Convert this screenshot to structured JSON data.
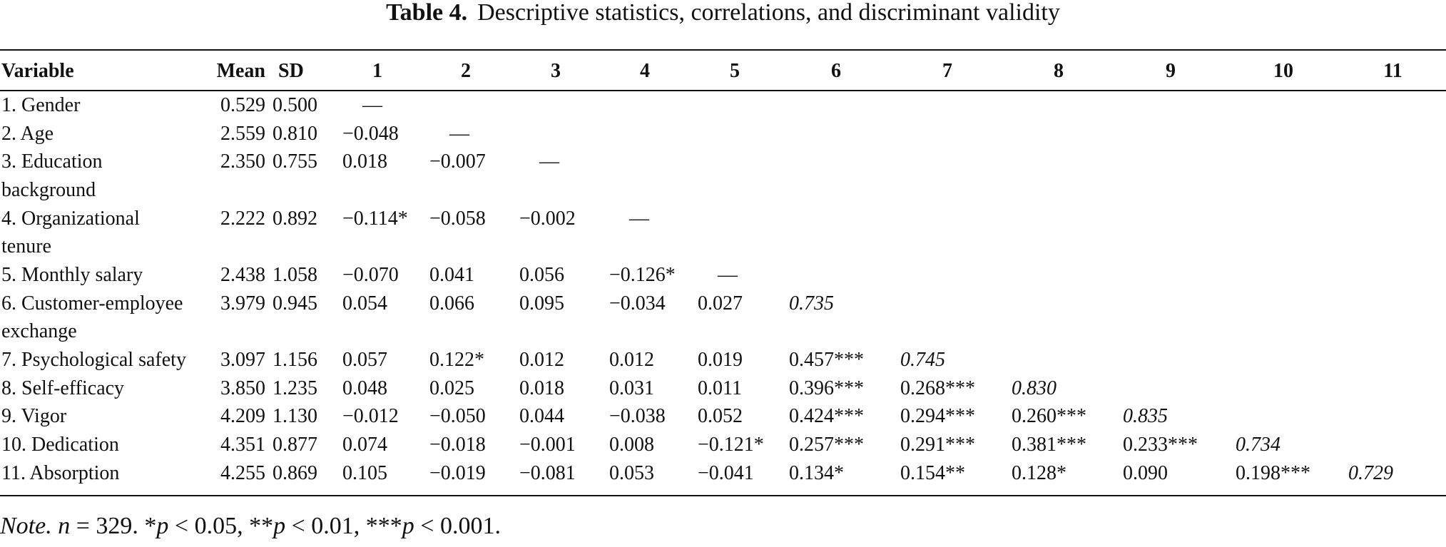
{
  "caption": {
    "label": "Table 4.",
    "title": "Descriptive statistics, correlations, and discriminant validity"
  },
  "headers": [
    "Variable",
    "Mean",
    "SD",
    "1",
    "2",
    "3",
    "4",
    "5",
    "6",
    "7",
    "8",
    "9",
    "10",
    "11"
  ],
  "rows": [
    {
      "variable": "1. Gender",
      "cont": "",
      "mean": "0.529",
      "sd": "0.500",
      "cells": [
        "—",
        "",
        "",
        "",
        "",
        "",
        "",
        "",
        "",
        "",
        ""
      ]
    },
    {
      "variable": "2. Age",
      "cont": "",
      "mean": "2.559",
      "sd": "0.810",
      "cells": [
        "−0.048",
        "—",
        "",
        "",
        "",
        "",
        "",
        "",
        "",
        "",
        ""
      ]
    },
    {
      "variable": "3. Education",
      "cont": "background",
      "mean": "2.350",
      "sd": "0.755",
      "cells": [
        "0.018",
        "−0.007",
        "—",
        "",
        "",
        "",
        "",
        "",
        "",
        "",
        ""
      ]
    },
    {
      "variable": "4. Organizational",
      "cont": "tenure",
      "mean": "2.222",
      "sd": "0.892",
      "cells": [
        "−0.114*",
        "−0.058",
        "−0.002",
        "—",
        "",
        "",
        "",
        "",
        "",
        "",
        ""
      ]
    },
    {
      "variable": "5. Monthly salary",
      "cont": "",
      "mean": "2.438",
      "sd": "1.058",
      "cells": [
        "−0.070",
        "0.041",
        "0.056",
        "−0.126*",
        "—",
        "",
        "",
        "",
        "",
        "",
        ""
      ]
    },
    {
      "variable": "6. Customer-employee",
      "cont": "exchange",
      "mean": "3.979",
      "sd": "0.945",
      "cells": [
        "0.054",
        "0.066",
        "0.095",
        "−0.034",
        "0.027",
        "0.735",
        "",
        "",
        "",
        "",
        ""
      ]
    },
    {
      "variable": "7. Psychological safety",
      "cont": "",
      "mean": "3.097",
      "sd": "1.156",
      "cells": [
        "0.057",
        "0.122*",
        "0.012",
        "0.012",
        "0.019",
        "0.457***",
        "0.745",
        "",
        "",
        "",
        ""
      ]
    },
    {
      "variable": "8. Self-efficacy",
      "cont": "",
      "mean": "3.850",
      "sd": "1.235",
      "cells": [
        "0.048",
        "0.025",
        "0.018",
        "0.031",
        "0.011",
        "0.396***",
        "0.268***",
        "0.830",
        "",
        "",
        ""
      ]
    },
    {
      "variable": "9. Vigor",
      "cont": "",
      "mean": "4.209",
      "sd": "1.130",
      "cells": [
        "−0.012",
        "−0.050",
        "0.044",
        "−0.038",
        "0.052",
        "0.424***",
        "0.294***",
        "0.260***",
        "0.835",
        "",
        ""
      ]
    },
    {
      "variable": "10. Dedication",
      "cont": "",
      "mean": "4.351",
      "sd": "0.877",
      "cells": [
        "0.074",
        "−0.018",
        "−0.001",
        "0.008",
        "−0.121*",
        "0.257***",
        "0.291***",
        "0.381***",
        "0.233***",
        "0.734",
        ""
      ]
    },
    {
      "variable": "11. Absorption",
      "cont": "",
      "mean": "4.255",
      "sd": "0.869",
      "cells": [
        "0.105",
        "−0.019",
        "−0.081",
        "0.053",
        "−0.041",
        "0.134*",
        "0.154**",
        "0.128*",
        "0.090",
        "0.198***",
        "0.729"
      ]
    }
  ],
  "note": {
    "label": "Note.",
    "n_var": "n",
    "n_text": " = 329. *",
    "p1": "p",
    "t1": " < 0.05, **",
    "p2": "p",
    "t2": " < 0.01, ***",
    "p3": "p",
    "t3": " < 0.001."
  }
}
